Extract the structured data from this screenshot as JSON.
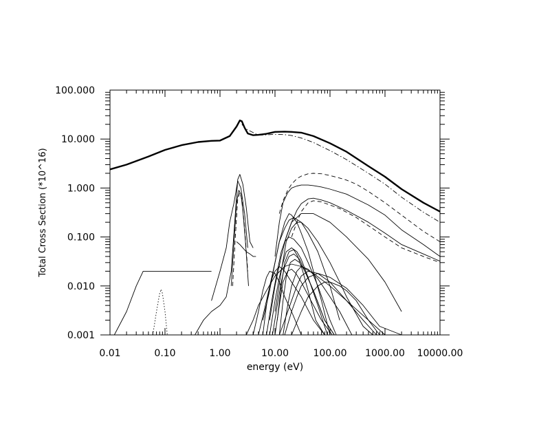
{
  "chart_data": {
    "type": "line",
    "xlabel": "energy (eV)",
    "ylabel": "Total Cross Section (*10^16)",
    "x_scale": "log",
    "y_scale": "log",
    "xlim": [
      0.01,
      10000
    ],
    "ylim": [
      0.001,
      100
    ],
    "x_tick_labels": [
      "0.01",
      "0.10",
      "1.00",
      "10.00",
      "100.00",
      "1000.00",
      "10000.00"
    ],
    "x_tick_values": [
      0.01,
      0.1,
      1,
      10,
      100,
      1000,
      10000
    ],
    "y_tick_labels": [
      "0.001",
      "0.010",
      "0.100",
      "1.000",
      "10.000",
      "100.000"
    ],
    "y_tick_values": [
      0.001,
      0.01,
      0.1,
      1,
      10,
      100
    ],
    "grid": false,
    "series": [
      {
        "style": "thick",
        "x": [
          0.01,
          0.02,
          0.05,
          0.1,
          0.2,
          0.4,
          0.7,
          1.0,
          1.5,
          2.0,
          2.3,
          2.5,
          2.8,
          3.2,
          4,
          5,
          7,
          10,
          15,
          20,
          30,
          50,
          100,
          200,
          500,
          1000,
          2000,
          5000,
          10000
        ],
        "y": [
          2.4,
          3.0,
          4.4,
          6.0,
          7.5,
          8.7,
          9.2,
          9.3,
          11.5,
          18,
          24,
          23,
          17,
          13,
          12,
          12.2,
          12.8,
          14,
          14.2,
          14,
          13.5,
          11.5,
          8.2,
          5.5,
          2.8,
          1.7,
          0.95,
          0.5,
          0.33
        ]
      },
      {
        "style": "dashdot",
        "x": [
          2.5,
          3,
          5,
          7,
          10,
          15,
          20,
          30,
          50,
          100,
          200,
          500,
          1000,
          2000,
          5000,
          10000
        ],
        "y": [
          20,
          16,
          12,
          12.2,
          12.5,
          12.3,
          11.8,
          10.5,
          8.5,
          5.8,
          3.8,
          2.0,
          1.2,
          0.65,
          0.32,
          0.2
        ]
      },
      {
        "style": "dashed",
        "x": [
          12,
          14,
          17,
          20,
          25,
          30,
          40,
          50,
          70,
          100,
          150,
          200,
          300,
          500,
          1000,
          2000,
          5000,
          10000
        ],
        "y": [
          0.3,
          0.55,
          0.9,
          1.2,
          1.55,
          1.75,
          1.95,
          2.0,
          1.95,
          1.8,
          1.6,
          1.45,
          1.2,
          0.85,
          0.5,
          0.28,
          0.13,
          0.08
        ]
      },
      {
        "style": "dashed",
        "x": [
          20,
          25,
          30,
          40,
          50,
          70,
          100,
          150,
          200,
          300,
          500,
          1000,
          2000,
          5000,
          10000
        ],
        "y": [
          0.1,
          0.2,
          0.33,
          0.5,
          0.55,
          0.52,
          0.45,
          0.38,
          0.32,
          0.25,
          0.17,
          0.1,
          0.06,
          0.04,
          0.03
        ]
      },
      {
        "style": "solid",
        "x": [
          10,
          12,
          14,
          17,
          20,
          25,
          30,
          40,
          50,
          70,
          100,
          200,
          500,
          1000,
          2000,
          5000,
          10000
        ],
        "y": [
          0.04,
          0.2,
          0.5,
          0.8,
          1.0,
          1.1,
          1.15,
          1.15,
          1.12,
          1.05,
          0.95,
          0.75,
          0.45,
          0.28,
          0.14,
          0.07,
          0.04
        ]
      },
      {
        "style": "solid",
        "x": [
          15,
          20,
          25,
          30,
          40,
          50,
          70,
          100,
          200,
          500,
          1000,
          2000,
          5000,
          10000
        ],
        "y": [
          0.08,
          0.2,
          0.35,
          0.48,
          0.6,
          0.62,
          0.57,
          0.5,
          0.35,
          0.2,
          0.12,
          0.07,
          0.045,
          0.032
        ]
      },
      {
        "style": "solid",
        "x": [
          0.012,
          0.02,
          0.03,
          0.04,
          0.06,
          0.1,
          0.2,
          0.4,
          0.7
        ],
        "y": [
          0.001,
          0.003,
          0.01,
          0.02,
          0.02,
          0.02,
          0.02,
          0.02,
          0.02
        ]
      },
      {
        "style": "dotted",
        "x": [
          0.06,
          0.07,
          0.08,
          0.085,
          0.09,
          0.1,
          0.11
        ],
        "y": [
          0.001,
          0.003,
          0.007,
          0.0085,
          0.007,
          0.003,
          0.001
        ]
      },
      {
        "style": "solid",
        "x": [
          0.35,
          0.5,
          0.7,
          1.0,
          1.3,
          1.6,
          1.9,
          2.1,
          2.3,
          2.6,
          3,
          3.5,
          4
        ],
        "y": [
          0.001,
          0.002,
          0.003,
          0.004,
          0.006,
          0.02,
          0.3,
          1.5,
          1.9,
          1.2,
          0.4,
          0.08,
          0.06
        ]
      },
      {
        "style": "solid",
        "x": [
          0.7,
          1.0,
          1.3,
          1.5,
          1.8,
          2.1,
          2.4,
          2.8,
          3.2
        ],
        "y": [
          0.005,
          0.02,
          0.06,
          0.2,
          0.5,
          1.4,
          1.0,
          0.3,
          0.06
        ]
      },
      {
        "style": "solid",
        "x": [
          1.6,
          1.8,
          2.0,
          2.2,
          2.4,
          2.6,
          2.9,
          3.3
        ],
        "y": [
          0.01,
          0.08,
          0.5,
          0.9,
          0.75,
          0.35,
          0.08,
          0.01
        ]
      },
      {
        "style": "dashed",
        "x": [
          1.7,
          1.9,
          2.1,
          2.3,
          2.5,
          2.8,
          3.2
        ],
        "y": [
          0.01,
          0.1,
          0.6,
          0.8,
          0.6,
          0.15,
          0.02
        ]
      },
      {
        "style": "solid",
        "x": [
          2,
          2.3,
          2.6,
          3,
          3.5,
          4,
          4.5
        ],
        "y": [
          0.08,
          0.07,
          0.06,
          0.05,
          0.045,
          0.04,
          0.04
        ]
      },
      {
        "style": "solid",
        "x": [
          3,
          4,
          5,
          7,
          10,
          15,
          20,
          30,
          50,
          100,
          200,
          500,
          1000
        ],
        "y": [
          0.001,
          0.002,
          0.004,
          0.008,
          0.016,
          0.025,
          0.028,
          0.025,
          0.018,
          0.01,
          0.005,
          0.002,
          0.001
        ]
      },
      {
        "style": "solid",
        "x": [
          5,
          7,
          10,
          12,
          15,
          18,
          22,
          30,
          40,
          60,
          100,
          150
        ],
        "y": [
          0.001,
          0.005,
          0.03,
          0.08,
          0.15,
          0.22,
          0.25,
          0.2,
          0.12,
          0.05,
          0.01,
          0.002
        ]
      },
      {
        "style": "solid",
        "x": [
          6,
          8,
          10,
          12,
          15,
          18,
          20,
          25,
          30,
          40,
          50,
          70,
          100
        ],
        "y": [
          0.002,
          0.008,
          0.03,
          0.08,
          0.2,
          0.3,
          0.28,
          0.2,
          0.12,
          0.05,
          0.02,
          0.005,
          0.001
        ]
      },
      {
        "style": "solid",
        "x": [
          7,
          9,
          11,
          13,
          15,
          18,
          22,
          30,
          40,
          60,
          100,
          130
        ],
        "y": [
          0.001,
          0.006,
          0.02,
          0.05,
          0.08,
          0.1,
          0.09,
          0.06,
          0.03,
          0.01,
          0.002,
          0.001
        ]
      },
      {
        "style": "solid",
        "x": [
          8,
          10,
          12,
          14,
          16,
          20,
          25,
          30,
          40,
          60,
          90
        ],
        "y": [
          0.001,
          0.005,
          0.015,
          0.03,
          0.05,
          0.06,
          0.05,
          0.035,
          0.015,
          0.004,
          0.001
        ]
      },
      {
        "style": "solid",
        "x": [
          6,
          7,
          8,
          9,
          10,
          12,
          15,
          20,
          30,
          50,
          80
        ],
        "y": [
          0.001,
          0.004,
          0.01,
          0.015,
          0.02,
          0.025,
          0.02,
          0.012,
          0.006,
          0.002,
          0.001
        ]
      },
      {
        "style": "solid",
        "x": [
          4,
          5,
          6,
          7,
          8,
          10,
          12,
          15,
          20,
          30
        ],
        "y": [
          0.001,
          0.003,
          0.008,
          0.015,
          0.02,
          0.018,
          0.012,
          0.006,
          0.003,
          0.001
        ]
      },
      {
        "style": "solid",
        "x": [
          9,
          11,
          13,
          15,
          18,
          22,
          28,
          35,
          50,
          80,
          120
        ],
        "y": [
          0.001,
          0.004,
          0.012,
          0.025,
          0.04,
          0.045,
          0.035,
          0.02,
          0.008,
          0.002,
          0.001
        ]
      },
      {
        "style": "solid",
        "x": [
          12,
          15,
          20,
          25,
          30,
          40,
          60,
          100,
          200,
          400,
          700
        ],
        "y": [
          0.001,
          0.002,
          0.005,
          0.01,
          0.016,
          0.02,
          0.018,
          0.012,
          0.005,
          0.002,
          0.001
        ]
      },
      {
        "style": "solid",
        "x": [
          8,
          10,
          13,
          16,
          20,
          30,
          50,
          100,
          200,
          500,
          1000,
          2000
        ],
        "y": [
          0.002,
          0.01,
          0.04,
          0.1,
          0.2,
          0.3,
          0.3,
          0.2,
          0.1,
          0.035,
          0.012,
          0.003
        ]
      },
      {
        "style": "solid",
        "x": [
          15,
          20,
          25,
          30,
          40,
          60,
          100,
          200,
          400,
          800,
          2000
        ],
        "y": [
          0.001,
          0.003,
          0.006,
          0.01,
          0.015,
          0.018,
          0.015,
          0.009,
          0.004,
          0.0015,
          0.001
        ]
      },
      {
        "style": "solid",
        "x": [
          10,
          13,
          16,
          20,
          25,
          30,
          40,
          60,
          100,
          150,
          200,
          400,
          600
        ],
        "y": [
          0.003,
          0.02,
          0.08,
          0.15,
          0.2,
          0.2,
          0.15,
          0.08,
          0.03,
          0.012,
          0.006,
          0.0015,
          0.001
        ]
      },
      {
        "style": "solid",
        "x": [
          11,
          13,
          15,
          18,
          22,
          26,
          32,
          40,
          55,
          80
        ],
        "y": [
          0.002,
          0.01,
          0.03,
          0.05,
          0.055,
          0.04,
          0.02,
          0.008,
          0.002,
          0.001
        ]
      },
      {
        "style": "solid",
        "x": [
          12,
          14,
          16,
          19,
          23,
          28,
          35,
          50,
          80,
          120
        ],
        "y": [
          0.001,
          0.005,
          0.015,
          0.03,
          0.035,
          0.03,
          0.02,
          0.008,
          0.002,
          0.001
        ]
      },
      {
        "style": "solid",
        "x": [
          14,
          17,
          20,
          25,
          30,
          40,
          60,
          100,
          150,
          250
        ],
        "y": [
          0.001,
          0.004,
          0.01,
          0.02,
          0.025,
          0.022,
          0.014,
          0.006,
          0.003,
          0.001
        ]
      },
      {
        "style": "solid",
        "x": [
          10,
          12,
          14,
          17,
          20,
          24,
          30,
          45,
          70,
          110
        ],
        "y": [
          0.001,
          0.004,
          0.012,
          0.02,
          0.022,
          0.018,
          0.012,
          0.005,
          0.002,
          0.001
        ]
      },
      {
        "style": "solid",
        "x": [
          20,
          30,
          40,
          60,
          80,
          100,
          150,
          200,
          300,
          500,
          800,
          1200
        ],
        "y": [
          0.001,
          0.003,
          0.006,
          0.01,
          0.012,
          0.012,
          0.01,
          0.008,
          0.005,
          0.002,
          0.001,
          0.001
        ]
      }
    ]
  }
}
